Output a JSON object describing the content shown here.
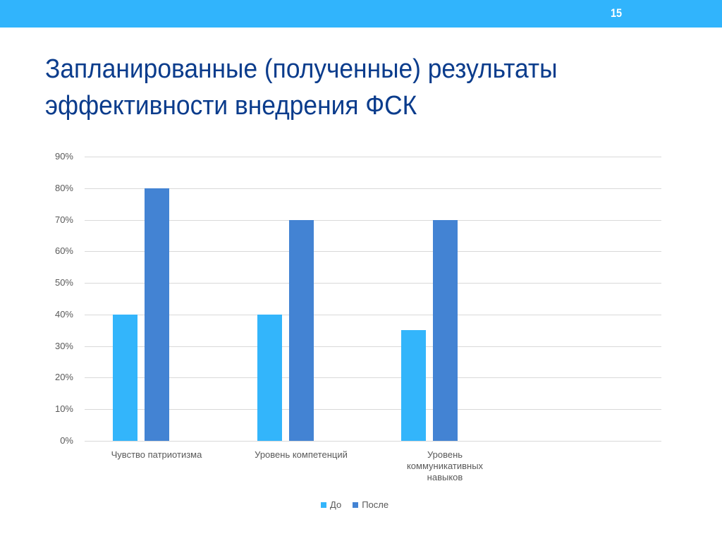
{
  "slide": {
    "number": "15",
    "title_line1": "Запланированные (полученные) результаты",
    "title_line2": "эффективности внедрения  ФСК",
    "header_color": "#31b4fc",
    "title_color": "#0b3c8c"
  },
  "chart_data": {
    "type": "bar",
    "title": "",
    "xlabel": "",
    "ylabel": "",
    "ylim": [
      0,
      0.9
    ],
    "y_ticks": [
      "0%",
      "10%",
      "20%",
      "30%",
      "40%",
      "50%",
      "60%",
      "70%",
      "80%",
      "90%"
    ],
    "grid": true,
    "legend_position": "bottom",
    "categories": [
      "Чувство патриотизма",
      "Уровень компетенций",
      "Уровень коммуникативных навыков"
    ],
    "category_lines": [
      [
        "Чувство патриотизма"
      ],
      [
        "Уровень компетенций"
      ],
      [
        "Уровень",
        "коммуникативных",
        "навыков"
      ]
    ],
    "series": [
      {
        "name": "До",
        "color": "#33b5fb",
        "values": [
          0.4,
          0.4,
          0.35
        ]
      },
      {
        "name": "После",
        "color": "#4383d3",
        "values": [
          0.8,
          0.7,
          0.7
        ]
      }
    ]
  }
}
